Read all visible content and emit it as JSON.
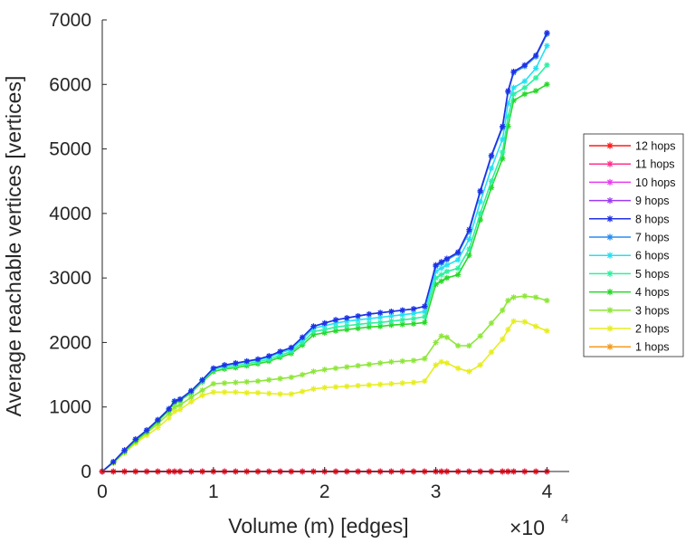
{
  "chart_data": {
    "type": "line",
    "title": "",
    "xlabel": "Volume (m) [edges]",
    "ylabel": "Average reachable vertices [vertices]",
    "x_multiplier_label": "×10",
    "x_multiplier_exponent": "4",
    "xlim": [
      0,
      42000
    ],
    "ylim": [
      0,
      7000
    ],
    "xticks": [
      0,
      10000,
      20000,
      30000,
      40000
    ],
    "xtick_labels": [
      "0",
      "1",
      "2",
      "3",
      "4"
    ],
    "yticks": [
      0,
      1000,
      2000,
      3000,
      4000,
      5000,
      6000,
      7000
    ],
    "ytick_labels": [
      "0",
      "1000",
      "2000",
      "3000",
      "4000",
      "5000",
      "6000",
      "7000"
    ],
    "grid": false,
    "legend_position": "right",
    "marker": "asterisk",
    "x": [
      0,
      1000,
      2000,
      3000,
      4000,
      5000,
      6000,
      6500,
      7000,
      8000,
      9000,
      10000,
      11000,
      12000,
      13000,
      14000,
      15000,
      16000,
      17000,
      18000,
      19000,
      20000,
      21000,
      22000,
      23000,
      24000,
      25000,
      26000,
      27000,
      28000,
      29000,
      30000,
      30500,
      31000,
      32000,
      33000,
      34000,
      35000,
      36000,
      36500,
      37000,
      38000,
      39000,
      40000
    ],
    "series": [
      {
        "name": "12 hops",
        "color": "#ff1a1a",
        "values": [
          0,
          0,
          0,
          0,
          0,
          0,
          0,
          0,
          0,
          0,
          0,
          0,
          0,
          0,
          0,
          0,
          0,
          0,
          0,
          0,
          0,
          0,
          0,
          0,
          0,
          0,
          0,
          0,
          0,
          0,
          0,
          0,
          0,
          0,
          0,
          0,
          0,
          0,
          0,
          0,
          0,
          0,
          0,
          0
        ]
      },
      {
        "name": "11 hops",
        "color": "#ff2f8e",
        "values": [
          0,
          0,
          0,
          0,
          0,
          0,
          0,
          0,
          0,
          0,
          0,
          0,
          0,
          0,
          0,
          0,
          0,
          0,
          0,
          0,
          0,
          0,
          0,
          0,
          0,
          0,
          0,
          0,
          0,
          0,
          0,
          0,
          0,
          0,
          0,
          0,
          0,
          0,
          0,
          0,
          0,
          0,
          0,
          0
        ]
      },
      {
        "name": "10 hops",
        "color": "#e83cf0",
        "values": [
          0,
          0,
          0,
          0,
          0,
          0,
          0,
          0,
          0,
          0,
          0,
          0,
          0,
          0,
          0,
          0,
          0,
          0,
          0,
          0,
          0,
          0,
          0,
          0,
          0,
          0,
          0,
          0,
          0,
          0,
          0,
          0,
          0,
          0,
          0,
          0,
          0,
          0,
          0,
          0,
          0,
          0,
          0,
          0
        ]
      },
      {
        "name": "9 hops",
        "color": "#9a3cf2",
        "values": [
          0,
          0,
          0,
          0,
          0,
          0,
          0,
          0,
          0,
          0,
          0,
          0,
          0,
          0,
          0,
          0,
          0,
          0,
          0,
          0,
          0,
          0,
          0,
          0,
          0,
          0,
          0,
          0,
          0,
          0,
          0,
          0,
          0,
          0,
          0,
          0,
          0,
          0,
          0,
          0,
          0,
          0,
          0,
          0
        ]
      },
      {
        "name": "8 hops",
        "color": "#2030e6",
        "values": [
          0,
          150,
          330,
          500,
          640,
          800,
          970,
          1090,
          1120,
          1250,
          1420,
          1600,
          1650,
          1680,
          1710,
          1740,
          1790,
          1860,
          1920,
          2080,
          2250,
          2300,
          2350,
          2380,
          2410,
          2440,
          2460,
          2480,
          2500,
          2520,
          2560,
          3200,
          3250,
          3300,
          3400,
          3750,
          4350,
          4900,
          5350,
          5900,
          6200,
          6300,
          6450,
          6800
        ]
      },
      {
        "name": "7 hops",
        "color": "#2a8cf0",
        "values": [
          0,
          150,
          330,
          500,
          640,
          800,
          970,
          1090,
          1120,
          1250,
          1420,
          1600,
          1650,
          1680,
          1710,
          1740,
          1790,
          1860,
          1920,
          2080,
          2250,
          2300,
          2350,
          2380,
          2410,
          2440,
          2460,
          2480,
          2500,
          2520,
          2560,
          3180,
          3230,
          3280,
          3380,
          3720,
          4330,
          4880,
          5330,
          5880,
          6180,
          6280,
          6430,
          6780
        ]
      },
      {
        "name": "6 hops",
        "color": "#25e0f0",
        "values": [
          0,
          150,
          330,
          500,
          640,
          800,
          970,
          1090,
          1120,
          1250,
          1420,
          1590,
          1640,
          1670,
          1700,
          1730,
          1770,
          1840,
          1890,
          2050,
          2220,
          2260,
          2300,
          2330,
          2350,
          2370,
          2390,
          2410,
          2430,
          2450,
          2480,
          3100,
          3150,
          3200,
          3280,
          3600,
          4180,
          4700,
          5150,
          5700,
          5950,
          6050,
          6250,
          6600
        ]
      },
      {
        "name": "5 hops",
        "color": "#2df0a0",
        "values": [
          0,
          150,
          330,
          500,
          640,
          800,
          970,
          1090,
          1120,
          1240,
          1410,
          1580,
          1620,
          1640,
          1670,
          1700,
          1740,
          1800,
          1860,
          2000,
          2170,
          2200,
          2240,
          2260,
          2280,
          2300,
          2310,
          2330,
          2350,
          2370,
          2400,
          3000,
          3050,
          3100,
          3150,
          3450,
          4000,
          4500,
          4950,
          5500,
          5850,
          5950,
          6100,
          6300
        ]
      },
      {
        "name": "4 hops",
        "color": "#28d828",
        "values": [
          0,
          140,
          310,
          480,
          620,
          780,
          950,
          1070,
          1100,
          1220,
          1390,
          1550,
          1590,
          1610,
          1640,
          1670,
          1710,
          1770,
          1830,
          1960,
          2120,
          2150,
          2180,
          2200,
          2220,
          2240,
          2250,
          2270,
          2280,
          2290,
          2310,
          2900,
          2950,
          3000,
          3050,
          3350,
          3900,
          4400,
          4850,
          5350,
          5750,
          5850,
          5900,
          6000
        ]
      },
      {
        "name": "3 hops",
        "color": "#8ee63a",
        "values": [
          0,
          140,
          300,
          460,
          600,
          740,
          900,
          1000,
          1030,
          1150,
          1260,
          1360,
          1370,
          1380,
          1390,
          1400,
          1420,
          1440,
          1460,
          1500,
          1550,
          1580,
          1600,
          1620,
          1640,
          1660,
          1680,
          1700,
          1710,
          1720,
          1750,
          2000,
          2100,
          2080,
          1950,
          1950,
          2100,
          2300,
          2500,
          2650,
          2700,
          2720,
          2700,
          2650
        ]
      },
      {
        "name": "2 hops",
        "color": "#e6ee1e",
        "values": [
          0,
          130,
          290,
          440,
          560,
          680,
          830,
          930,
          960,
          1080,
          1180,
          1230,
          1230,
          1230,
          1220,
          1220,
          1210,
          1200,
          1200,
          1240,
          1280,
          1300,
          1310,
          1320,
          1330,
          1340,
          1350,
          1360,
          1370,
          1380,
          1400,
          1650,
          1700,
          1680,
          1600,
          1550,
          1650,
          1850,
          2050,
          2200,
          2330,
          2320,
          2250,
          2180
        ]
      },
      {
        "name": "1 hops",
        "color": "#f59a1a",
        "values": [
          0,
          0,
          0,
          0,
          0,
          0,
          0,
          0,
          0,
          0,
          0,
          0,
          0,
          0,
          0,
          0,
          0,
          0,
          0,
          0,
          0,
          0,
          0,
          0,
          0,
          0,
          0,
          0,
          0,
          0,
          0,
          0,
          0,
          0,
          0,
          0,
          0,
          0,
          0,
          0,
          0,
          0,
          0,
          0
        ]
      }
    ]
  }
}
